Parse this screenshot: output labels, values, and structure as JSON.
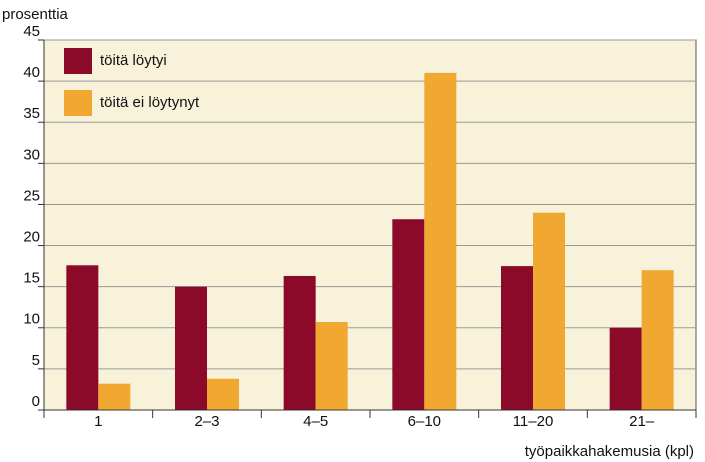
{
  "chart_data": {
    "type": "bar",
    "y_label": "prosenttia",
    "x_label": "työpaikkahakemusia (kpl)",
    "categories": [
      "1",
      "2–3",
      "4–5",
      "6–10",
      "11–20",
      "21–"
    ],
    "series": [
      {
        "name": "töitä löytyi",
        "color": "#8b0a2a",
        "values": [
          17.6,
          15.0,
          16.3,
          23.2,
          17.5,
          10.0
        ]
      },
      {
        "name": "töitä ei löytynyt",
        "color": "#f0a830",
        "values": [
          3.2,
          3.8,
          10.7,
          41.0,
          24.0,
          17.0
        ]
      }
    ],
    "ylim": [
      0,
      45
    ],
    "yticks": [
      0,
      5,
      10,
      15,
      20,
      25,
      30,
      35,
      40,
      45
    ],
    "grid": true,
    "legend": "upper left",
    "background": "#f8f2da"
  }
}
